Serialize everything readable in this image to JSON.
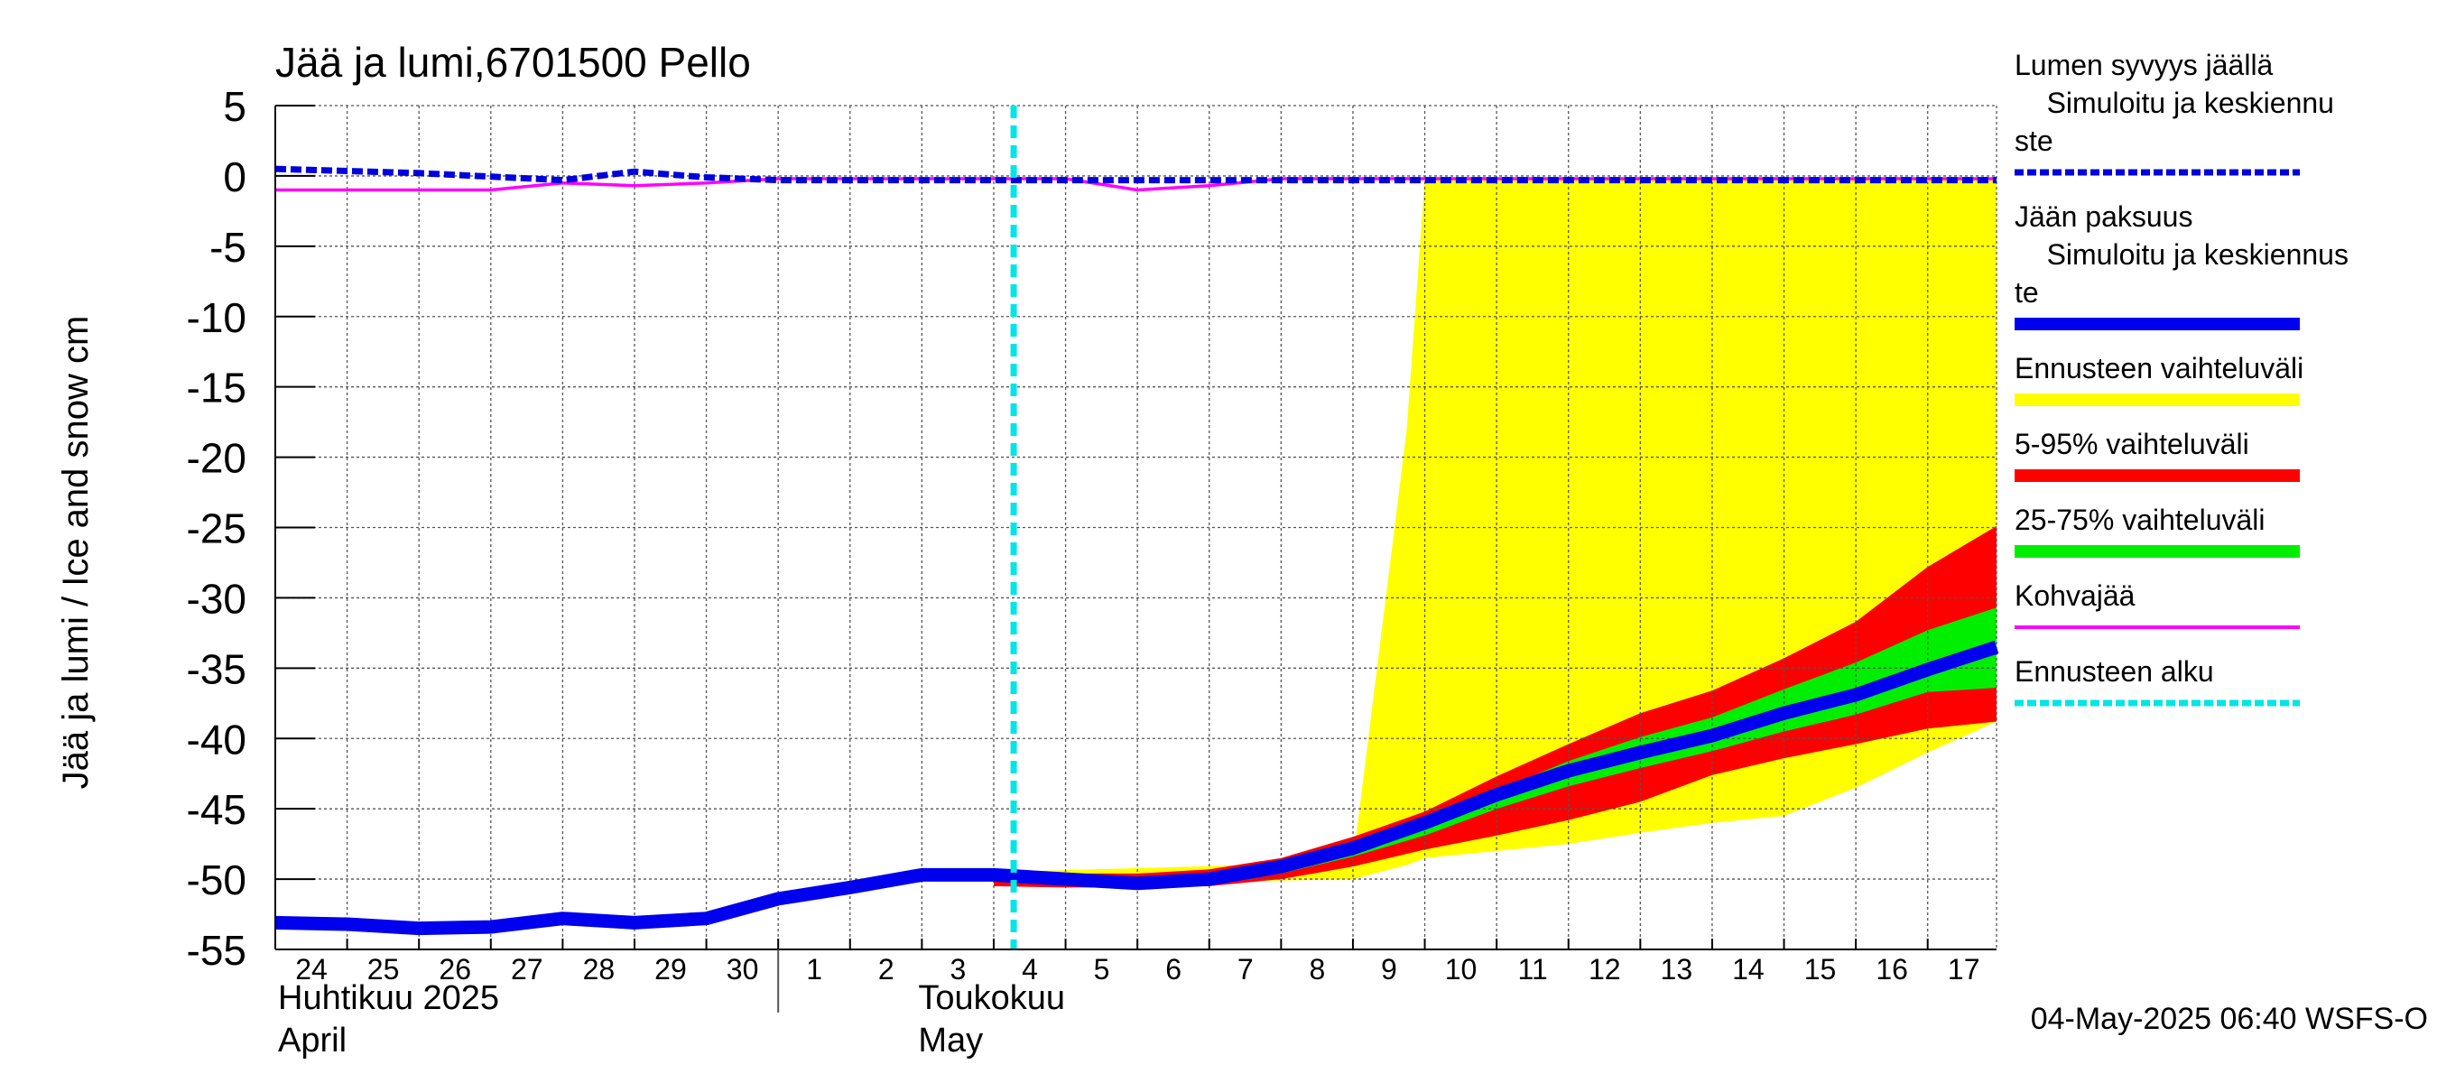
{
  "chart_data": {
    "type": "area",
    "title": "Jää ja lumi,6701500 Pello",
    "ylabel": "Jää ja lumi / Ice and snow    cm",
    "ylim": [
      -55,
      5
    ],
    "yticks": [
      5,
      0,
      -5,
      -10,
      -15,
      -20,
      -25,
      -30,
      -35,
      -40,
      -45,
      -50,
      -55
    ],
    "ytick_labels": [
      "5",
      "0",
      "-5",
      "-10",
      "-15",
      "-20",
      "-25",
      "-30",
      "-35",
      "-40",
      "-45",
      "-50",
      "-55"
    ],
    "xlim": [
      "2025-04-24",
      "2025-05-17 23:00"
    ],
    "xtick_labels": [
      "24",
      "25",
      "26",
      "27",
      "28",
      "29",
      "30",
      "1",
      "2",
      "3",
      "4",
      "5",
      "6",
      "7",
      "8",
      "9",
      "10",
      "11",
      "12",
      "13",
      "14",
      "15",
      "16",
      "17"
    ],
    "month_labels": [
      {
        "line1": "Huhtikuu  2025",
        "line2": "April"
      },
      {
        "line1": "Toukokuu",
        "line2": "May"
      }
    ],
    "grid": true,
    "forecast_start": "2025-05-04 06:40",
    "timestamp": "04-May-2025 06:40 WSFS-O",
    "legend_placement": "right",
    "legend": [
      {
        "label": "Lumen syvyys jäällä\n  Simuloitu ja keskiennu\nste",
        "color": "#0000dd",
        "style": "dashed"
      },
      {
        "label": "Jään paksuus\n  Simuloitu ja keskiennus\nte",
        "color": "#0000ee",
        "style": "solid-thick"
      },
      {
        "label": "Ennusteen vaihteluväli",
        "color": "#ffff00",
        "style": "band"
      },
      {
        "label": "5-95% vaihteluväli",
        "color": "#ff0000",
        "style": "band"
      },
      {
        "label": "25-75% vaihteluväli",
        "color": "#00ee00",
        "style": "band"
      },
      {
        "label": "Kohvajää",
        "color": "#ff00ff",
        "style": "solid"
      },
      {
        "label": "Ennusteen alku",
        "color": "#00e5e5",
        "style": "dashed"
      }
    ],
    "series": [
      {
        "name": "Lumen syvyys jäällä",
        "color": "#0000dd",
        "x": [
          "2025-04-24",
          "2025-04-26",
          "2025-04-28",
          "2025-04-29",
          "2025-04-30",
          "2025-05-01",
          "2025-05-17 23:00"
        ],
        "y": [
          0.5,
          0.2,
          -0.3,
          0.3,
          -0.1,
          -0.3,
          -0.3
        ]
      },
      {
        "name": "Jään paksuus",
        "color": "#0000ee",
        "x": [
          "2025-04-24",
          "2025-04-25",
          "2025-04-26",
          "2025-04-27",
          "2025-04-28",
          "2025-04-29",
          "2025-04-30",
          "2025-05-01",
          "2025-05-02",
          "2025-05-03",
          "2025-05-04",
          "2025-05-05",
          "2025-05-06",
          "2025-05-07",
          "2025-05-08",
          "2025-05-09",
          "2025-05-10",
          "2025-05-11",
          "2025-05-12",
          "2025-05-13",
          "2025-05-14",
          "2025-05-15",
          "2025-05-16",
          "2025-05-17",
          "2025-05-17 23:00"
        ],
        "y": [
          -53.1,
          -53.2,
          -53.5,
          -53.4,
          -52.8,
          -53.1,
          -52.8,
          -51.4,
          -50.6,
          -49.7,
          -49.7,
          -50.0,
          -50.3,
          -50.0,
          -49.1,
          -47.8,
          -46.0,
          -44.0,
          -42.3,
          -41.0,
          -39.8,
          -38.2,
          -36.9,
          -35.1,
          -33.5
        ]
      },
      {
        "name": "Kohvajää",
        "color": "#ff00ff",
        "x": [
          "2025-04-24",
          "2025-04-27",
          "2025-04-28",
          "2025-04-29",
          "2025-04-30",
          "2025-05-01",
          "2025-05-05",
          "2025-05-06",
          "2025-05-07",
          "2025-05-08",
          "2025-05-17 23:00"
        ],
        "y": [
          -1.0,
          -1.0,
          -0.5,
          -0.7,
          -0.5,
          -0.2,
          -0.2,
          -1.0,
          -0.7,
          -0.2,
          -0.2
        ]
      }
    ],
    "bands": [
      {
        "name": "Ennusteen vaihteluväli",
        "color": "#ffff00",
        "x": [
          "2025-05-04",
          "2025-05-09",
          "2025-05-09 18:00",
          "2025-05-10",
          "2025-05-11",
          "2025-05-12",
          "2025-05-13",
          "2025-05-14",
          "2025-05-15",
          "2025-05-16",
          "2025-05-17",
          "2025-05-17 23:00"
        ],
        "upper": [
          -49.5,
          -48.8,
          -18.0,
          -0.2,
          -0.2,
          -0.2,
          -0.2,
          -0.2,
          -0.2,
          -0.2,
          -0.2,
          -0.2
        ],
        "lower": [
          -50.5,
          -50.0,
          -49.0,
          -48.5,
          -48.0,
          -47.5,
          -46.7,
          -46.0,
          -45.5,
          -43.5,
          -41.0,
          -38.8
        ]
      },
      {
        "name": "5-95% vaihteluväli",
        "color": "#ff0000",
        "x": [
          "2025-05-04",
          "2025-05-05",
          "2025-05-06",
          "2025-05-07",
          "2025-05-08",
          "2025-05-09",
          "2025-05-10",
          "2025-05-11",
          "2025-05-12",
          "2025-05-13",
          "2025-05-14",
          "2025-05-15",
          "2025-05-16",
          "2025-05-17",
          "2025-05-17 23:00"
        ],
        "upper": [
          -49.7,
          -49.6,
          -49.6,
          -49.3,
          -48.5,
          -47.0,
          -45.2,
          -42.7,
          -40.4,
          -38.2,
          -36.6,
          -34.3,
          -31.7,
          -27.8,
          -24.9
        ],
        "lower": [
          -50.5,
          -50.6,
          -50.6,
          -50.5,
          -50.0,
          -49.1,
          -47.9,
          -46.9,
          -45.8,
          -44.5,
          -42.6,
          -41.4,
          -40.4,
          -39.3,
          -38.8
        ]
      },
      {
        "name": "25-75% vaihteluväli",
        "color": "#00ee00",
        "x": [
          "2025-05-04",
          "2025-05-05",
          "2025-05-06",
          "2025-05-07",
          "2025-05-08",
          "2025-05-09",
          "2025-05-10",
          "2025-05-11",
          "2025-05-12",
          "2025-05-13",
          "2025-05-14",
          "2025-05-15",
          "2025-05-16",
          "2025-05-17",
          "2025-05-17 23:00"
        ],
        "upper": [
          -49.8,
          -49.9,
          -50.0,
          -49.7,
          -48.8,
          -47.4,
          -45.8,
          -43.7,
          -41.6,
          -39.9,
          -38.5,
          -36.5,
          -34.6,
          -32.3,
          -30.7
        ],
        "lower": [
          -50.1,
          -50.3,
          -50.5,
          -50.3,
          -49.6,
          -48.4,
          -46.9,
          -45.0,
          -43.4,
          -42.1,
          -40.9,
          -39.5,
          -38.3,
          -36.7,
          -36.4
        ]
      }
    ]
  }
}
